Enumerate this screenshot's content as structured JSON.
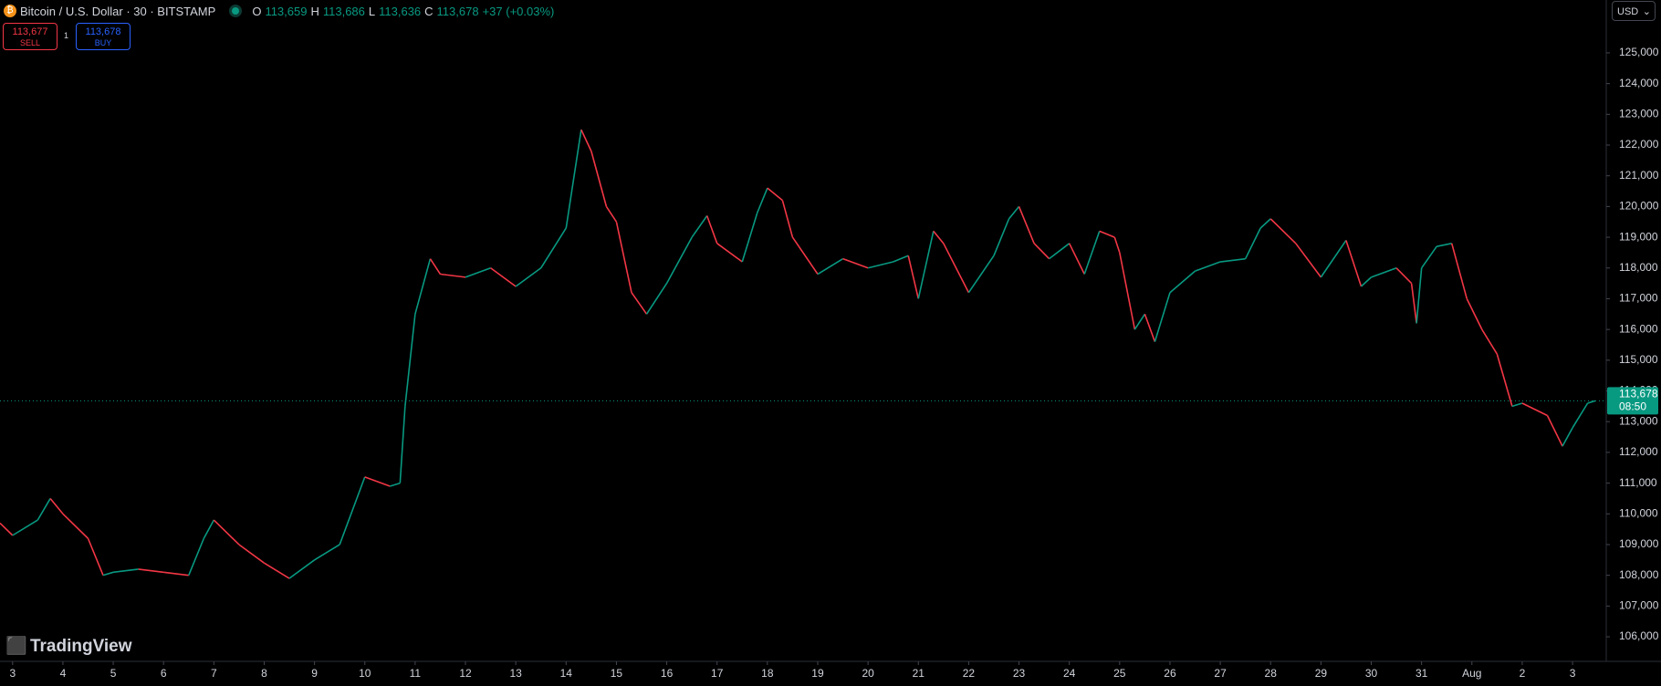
{
  "header": {
    "symbol": "Bitcoin / U.S. Dollar · 30 · BITSTAMP",
    "o_label": "O",
    "open": "113,659",
    "h_label": "H",
    "high": "113,686",
    "l_label": "L",
    "low": "113,636",
    "c_label": "C",
    "close": "113,678",
    "change": "+37 (+0.03%)"
  },
  "trade": {
    "sell_price": "113,677",
    "sell": "SELL",
    "spread": "1",
    "buy_price": "113,678",
    "buy": "BUY"
  },
  "currency": "USD",
  "logo": "TradingView",
  "chart_data": {
    "type": "line",
    "up_color": "#089981",
    "down_color": "#f23645",
    "x": [
      -0.25,
      0,
      0.5,
      0.75,
      1,
      1.5,
      1.8,
      2,
      2.5,
      3,
      3.5,
      3.8,
      4,
      4.5,
      5,
      5.5,
      6,
      6.5,
      7,
      7.5,
      7.7,
      7.8,
      8,
      8.3,
      8.5,
      9,
      9.5,
      10,
      10.5,
      11,
      11.3,
      11.5,
      11.8,
      12,
      12.3,
      12.6,
      13,
      13.5,
      13.8,
      14,
      14.5,
      14.8,
      15,
      15.3,
      15.5,
      16,
      16.5,
      17,
      17.5,
      17.8,
      18,
      18.3,
      18.5,
      19,
      19.5,
      19.8,
      20,
      20.3,
      20.6,
      21,
      21.3,
      21.6,
      21.9,
      22,
      22.3,
      22.5,
      22.7,
      23,
      23.5,
      24,
      24.5,
      24.8,
      25,
      25.5,
      26,
      26.5,
      26.8,
      27,
      27.5,
      27.8,
      27.9,
      28,
      28.3,
      28.6,
      28.9,
      29.2,
      29.5,
      29.8,
      30,
      30.5,
      30.8,
      31,
      31.3,
      31.45
    ],
    "values": [
      109700,
      109300,
      109800,
      110500,
      110000,
      109200,
      108000,
      108100,
      108200,
      108100,
      108000,
      109200,
      109800,
      109000,
      108400,
      107900,
      108500,
      109000,
      111200,
      110900,
      111000,
      113500,
      116500,
      118300,
      117800,
      117700,
      118000,
      117400,
      118000,
      119300,
      122500,
      121800,
      120000,
      119500,
      117200,
      116500,
      117500,
      119000,
      119700,
      118800,
      118200,
      119800,
      120600,
      120200,
      119000,
      117800,
      118300,
      118000,
      118200,
      118400,
      117000,
      119200,
      118800,
      117200,
      118400,
      119600,
      120000,
      118800,
      118300,
      118800,
      117800,
      119200,
      119000,
      118500,
      116000,
      116500,
      115600,
      117200,
      117900,
      118200,
      118300,
      119300,
      119600,
      118800,
      117700,
      118900,
      117400,
      117700,
      118000,
      117500,
      116200,
      118000,
      118700,
      118800,
      117000,
      116000,
      115200,
      113500,
      113600,
      113200,
      112200,
      112800,
      113600,
      113678
    ],
    "xlim": [
      -0.25,
      31.67
    ],
    "ylim": [
      105200,
      126720
    ],
    "xticks": [
      {
        "value": 0,
        "label": "3"
      },
      {
        "value": 1,
        "label": "4"
      },
      {
        "value": 2,
        "label": "5"
      },
      {
        "value": 3,
        "label": "6"
      },
      {
        "value": 4,
        "label": "7"
      },
      {
        "value": 5,
        "label": "8"
      },
      {
        "value": 6,
        "label": "9"
      },
      {
        "value": 7,
        "label": "10"
      },
      {
        "value": 8,
        "label": "11"
      },
      {
        "value": 9,
        "label": "12"
      },
      {
        "value": 10,
        "label": "13"
      },
      {
        "value": 11,
        "label": "14"
      },
      {
        "value": 12,
        "label": "15"
      },
      {
        "value": 13,
        "label": "16"
      },
      {
        "value": 14,
        "label": "17"
      },
      {
        "value": 15,
        "label": "18"
      },
      {
        "value": 16,
        "label": "19"
      },
      {
        "value": 17,
        "label": "20"
      },
      {
        "value": 18,
        "label": "21"
      },
      {
        "value": 19,
        "label": "22"
      },
      {
        "value": 20,
        "label": "23"
      },
      {
        "value": 21,
        "label": "24"
      },
      {
        "value": 22,
        "label": "25"
      },
      {
        "value": 23,
        "label": "26"
      },
      {
        "value": 24,
        "label": "27"
      },
      {
        "value": 25,
        "label": "28"
      },
      {
        "value": 26,
        "label": "29"
      },
      {
        "value": 27,
        "label": "30"
      },
      {
        "value": 28,
        "label": "31"
      },
      {
        "value": 29,
        "label": "Aug"
      },
      {
        "value": 30,
        "label": "2"
      },
      {
        "value": 31,
        "label": "3"
      }
    ],
    "yticks": [
      {
        "value": 106000,
        "label": "106,000"
      },
      {
        "value": 107000,
        "label": "107,000"
      },
      {
        "value": 108000,
        "label": "108,000"
      },
      {
        "value": 109000,
        "label": "109,000"
      },
      {
        "value": 110000,
        "label": "110,000"
      },
      {
        "value": 111000,
        "label": "111,000"
      },
      {
        "value": 112000,
        "label": "112,000"
      },
      {
        "value": 113000,
        "label": "113,000"
      },
      {
        "value": 114000,
        "label": "114,000"
      },
      {
        "value": 115000,
        "label": "115,000"
      },
      {
        "value": 116000,
        "label": "116,000"
      },
      {
        "value": 117000,
        "label": "117,000"
      },
      {
        "value": 118000,
        "label": "118,000"
      },
      {
        "value": 119000,
        "label": "119,000"
      },
      {
        "value": 120000,
        "label": "120,000"
      },
      {
        "value": 121000,
        "label": "121,000"
      },
      {
        "value": 122000,
        "label": "122,000"
      },
      {
        "value": 123000,
        "label": "123,000"
      },
      {
        "value": 124000,
        "label": "124,000"
      },
      {
        "value": 125000,
        "label": "125,000"
      }
    ],
    "last_price": {
      "value": 113678,
      "label": "113,678",
      "countdown": "08:50"
    }
  }
}
